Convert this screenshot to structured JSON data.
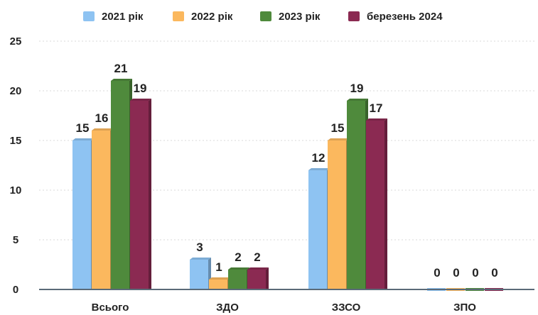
{
  "chart_data": {
    "type": "bar",
    "title": "",
    "xlabel": "",
    "ylabel": "",
    "categories": [
      "Всього",
      "ЗДО",
      "ЗЗСО",
      "ЗПО"
    ],
    "series": [
      {
        "name": "2021 рік",
        "values": [
          15,
          3,
          12,
          0
        ],
        "color": "#8ec3f2"
      },
      {
        "name": "2022 рік",
        "values": [
          16,
          1,
          15,
          0
        ],
        "color": "#fbb85e"
      },
      {
        "name": "2023 рік",
        "values": [
          21,
          2,
          19,
          0
        ],
        "color": "#4f8a3c"
      },
      {
        "name": "березень 2024",
        "values": [
          19,
          2,
          17,
          0
        ],
        "color": "#8b2a52"
      }
    ],
    "ylim": [
      0,
      25
    ],
    "yticks": [
      0,
      5,
      10,
      15,
      20,
      25
    ],
    "grid": true,
    "legend_position": "top"
  }
}
